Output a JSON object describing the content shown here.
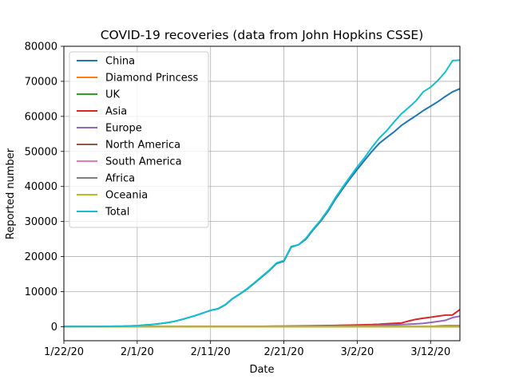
{
  "chart_data": {
    "type": "line",
    "title": "COVID-19 recoveries (data from John Hopkins CSSE)",
    "xlabel": "Date",
    "ylabel": "Reported number",
    "xlim": [
      "2020-01-22",
      "2020-03-16"
    ],
    "ylim": [
      -4000,
      80000
    ],
    "x_ticks": [
      {
        "date": "2020-01-22",
        "label": "1/22/20"
      },
      {
        "date": "2020-02-01",
        "label": "2/1/20"
      },
      {
        "date": "2020-02-11",
        "label": "2/11/20"
      },
      {
        "date": "2020-02-21",
        "label": "2/21/20"
      },
      {
        "date": "2020-03-02",
        "label": "3/2/20"
      },
      {
        "date": "2020-03-12",
        "label": "3/12/20"
      }
    ],
    "y_ticks": [
      0,
      10000,
      20000,
      30000,
      40000,
      50000,
      60000,
      70000,
      80000
    ],
    "grid": true,
    "legend_position": "top-left",
    "x": [
      "2020-01-22",
      "2020-01-23",
      "2020-01-24",
      "2020-01-25",
      "2020-01-26",
      "2020-01-27",
      "2020-01-28",
      "2020-01-29",
      "2020-01-30",
      "2020-01-31",
      "2020-02-01",
      "2020-02-02",
      "2020-02-03",
      "2020-02-04",
      "2020-02-05",
      "2020-02-06",
      "2020-02-07",
      "2020-02-08",
      "2020-02-09",
      "2020-02-10",
      "2020-02-11",
      "2020-02-12",
      "2020-02-13",
      "2020-02-14",
      "2020-02-15",
      "2020-02-16",
      "2020-02-17",
      "2020-02-18",
      "2020-02-19",
      "2020-02-20",
      "2020-02-21",
      "2020-02-22",
      "2020-02-23",
      "2020-02-24",
      "2020-02-25",
      "2020-02-26",
      "2020-02-27",
      "2020-02-28",
      "2020-02-29",
      "2020-03-01",
      "2020-03-02",
      "2020-03-03",
      "2020-03-04",
      "2020-03-05",
      "2020-03-06",
      "2020-03-07",
      "2020-03-08",
      "2020-03-09",
      "2020-03-10",
      "2020-03-11",
      "2020-03-12",
      "2020-03-13",
      "2020-03-14",
      "2020-03-15",
      "2020-03-16"
    ],
    "series": [
      {
        "name": "China",
        "color": "#1f77b4",
        "values": [
          28,
          30,
          36,
          39,
          49,
          58,
          101,
          120,
          135,
          214,
          275,
          463,
          614,
          843,
          1115,
          1476,
          1998,
          2595,
          3218,
          3918,
          4636,
          5082,
          6217,
          7977,
          9298,
          10755,
          12462,
          14206,
          15962,
          18014,
          18704,
          22699,
          23383,
          24960,
          27650,
          30059,
          32897,
          36293,
          39309,
          42162,
          44854,
          47450,
          50001,
          52292,
          53944,
          55539,
          57388,
          58804,
          60181,
          61644,
          62901,
          64196,
          65660,
          67017,
          67910
        ]
      },
      {
        "name": "Diamond Princess",
        "color": "#ff7f0e",
        "values": [
          0,
          0,
          0,
          0,
          0,
          0,
          0,
          0,
          0,
          0,
          0,
          0,
          0,
          0,
          0,
          0,
          0,
          0,
          0,
          0,
          0,
          0,
          0,
          0,
          0,
          0,
          0,
          0,
          0,
          0,
          0,
          0,
          0,
          0,
          0,
          0,
          0,
          0,
          0,
          0,
          0,
          0,
          0,
          0,
          0,
          0,
          0,
          0,
          0,
          40,
          40,
          200,
          325,
          325,
          325
        ]
      },
      {
        "name": "UK",
        "color": "#2ca02c",
        "values": [
          0,
          0,
          0,
          0,
          0,
          0,
          0,
          0,
          0,
          0,
          0,
          0,
          0,
          0,
          0,
          0,
          0,
          0,
          0,
          0,
          0,
          0,
          8,
          8,
          8,
          8,
          8,
          8,
          8,
          8,
          8,
          8,
          8,
          8,
          8,
          8,
          8,
          8,
          8,
          8,
          8,
          8,
          18,
          18,
          18,
          18,
          18,
          18,
          18,
          18,
          18,
          18,
          18,
          18,
          18
        ]
      },
      {
        "name": "Asia",
        "color": "#d62728",
        "values": [
          0,
          0,
          0,
          0,
          0,
          0,
          1,
          1,
          1,
          2,
          3,
          5,
          6,
          10,
          15,
          20,
          25,
          30,
          35,
          40,
          50,
          55,
          60,
          70,
          80,
          90,
          100,
          110,
          120,
          140,
          160,
          180,
          200,
          230,
          260,
          290,
          320,
          360,
          400,
          450,
          500,
          550,
          600,
          700,
          850,
          950,
          1050,
          1600,
          2100,
          2400,
          2700,
          3000,
          3300,
          3350,
          4900
        ]
      },
      {
        "name": "Europe",
        "color": "#9467bd",
        "values": [
          0,
          0,
          0,
          0,
          0,
          0,
          0,
          0,
          0,
          0,
          0,
          0,
          0,
          0,
          0,
          0,
          0,
          0,
          0,
          0,
          10,
          20,
          30,
          40,
          50,
          60,
          70,
          80,
          90,
          100,
          110,
          120,
          130,
          140,
          150,
          170,
          190,
          210,
          230,
          250,
          280,
          310,
          350,
          400,
          460,
          520,
          600,
          700,
          800,
          950,
          1200,
          1500,
          1800,
          2600,
          3000
        ]
      },
      {
        "name": "North America",
        "color": "#8c564b",
        "values": [
          0,
          0,
          0,
          0,
          0,
          0,
          0,
          0,
          0,
          0,
          0,
          0,
          0,
          0,
          0,
          0,
          0,
          0,
          0,
          0,
          0,
          0,
          0,
          0,
          0,
          0,
          0,
          0,
          0,
          0,
          0,
          0,
          0,
          0,
          0,
          0,
          0,
          0,
          0,
          0,
          0,
          0,
          0,
          0,
          0,
          0,
          0,
          0,
          0,
          0,
          0,
          0,
          0,
          0,
          0
        ]
      },
      {
        "name": "South America",
        "color": "#e377c2",
        "values": [
          0,
          0,
          0,
          0,
          0,
          0,
          0,
          0,
          0,
          0,
          0,
          0,
          0,
          0,
          0,
          0,
          0,
          0,
          0,
          0,
          0,
          0,
          0,
          0,
          0,
          0,
          0,
          0,
          0,
          0,
          0,
          0,
          0,
          0,
          0,
          0,
          0,
          0,
          0,
          0,
          0,
          0,
          0,
          0,
          0,
          0,
          0,
          0,
          0,
          0,
          0,
          0,
          0,
          0,
          0
        ]
      },
      {
        "name": "Africa",
        "color": "#7f7f7f",
        "values": [
          0,
          0,
          0,
          0,
          0,
          0,
          0,
          0,
          0,
          0,
          0,
          0,
          0,
          0,
          0,
          0,
          0,
          0,
          0,
          0,
          0,
          0,
          0,
          0,
          0,
          0,
          0,
          0,
          0,
          0,
          0,
          0,
          0,
          0,
          0,
          0,
          0,
          0,
          0,
          0,
          0,
          0,
          0,
          0,
          0,
          0,
          0,
          0,
          0,
          0,
          0,
          0,
          0,
          0,
          0
        ]
      },
      {
        "name": "Oceania",
        "color": "#bcbd22",
        "values": [
          0,
          0,
          0,
          0,
          0,
          0,
          0,
          0,
          0,
          0,
          0,
          0,
          0,
          0,
          0,
          0,
          0,
          0,
          0,
          0,
          0,
          0,
          0,
          0,
          0,
          0,
          0,
          0,
          0,
          0,
          0,
          0,
          0,
          0,
          0,
          0,
          0,
          0,
          0,
          0,
          0,
          0,
          0,
          0,
          0,
          0,
          0,
          0,
          0,
          0,
          0,
          0,
          0,
          0,
          0
        ]
      },
      {
        "name": "Total",
        "color": "#17becf",
        "values": [
          28,
          30,
          36,
          39,
          52,
          61,
          107,
          126,
          143,
          222,
          284,
          472,
          623,
          852,
          1124,
          1487,
          2011,
          2616,
          3244,
          3946,
          4683,
          5150,
          6295,
          8058,
          9395,
          10865,
          12583,
          14352,
          16121,
          18177,
          18890,
          22886,
          23394,
          25227,
          27905,
          30384,
          33277,
          36711,
          39782,
          42716,
          45602,
          48228,
          51170,
          53796,
          55865,
          58358,
          60694,
          62494,
          64404,
          67003,
          68324,
          70251,
          72624,
          75932,
          76034
        ]
      }
    ]
  }
}
